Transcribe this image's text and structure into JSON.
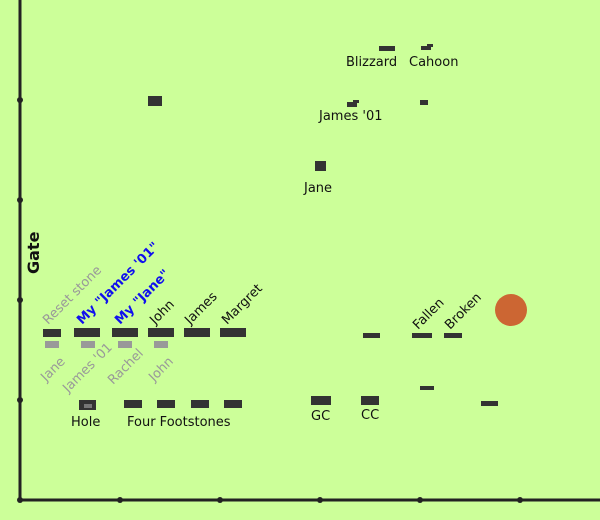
{
  "colors": {
    "background": "#ccff99",
    "axis": "#222222",
    "stone": "#333333",
    "stone_gray": "#999999",
    "label_gray": "#999999",
    "label_blue": "#1010ee",
    "marker": "#cc6633"
  },
  "axis_label": "Gate",
  "labels": {
    "blizzard": "Blizzard",
    "cahoon": "Cahoon",
    "james01_top": "James '01",
    "jane_mid": "Jane",
    "reset_stone": "Reset stone",
    "my_james01": "My \"James '01\"",
    "my_jane": "My \"Jane\"",
    "john_upper": "John",
    "james_upper": "James",
    "margret": "Margret",
    "fallen": "Fallen",
    "broken": "Broken",
    "jane_lower": "Jane",
    "james01_lower": "James '01",
    "rachel": "Rachel",
    "john_lower": "John",
    "hole": "Hole",
    "four_footstones": "Four Footstones",
    "gc": "GC",
    "cc": "CC"
  }
}
